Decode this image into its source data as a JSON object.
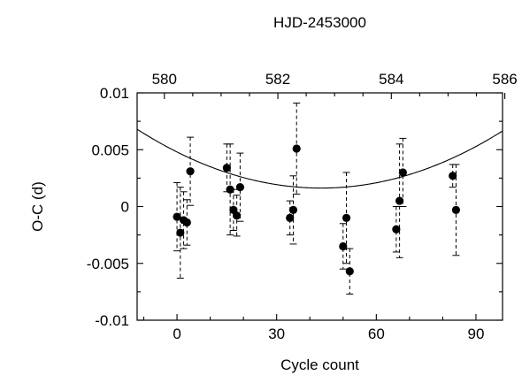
{
  "chart_data": {
    "type": "scatter",
    "title": "",
    "xlabel": "Cycle count",
    "ylabel": "O-C (d)",
    "x2label": "HJD-2453000",
    "xlim": [
      -12,
      98
    ],
    "ylim": [
      -0.01,
      0.01
    ],
    "x2lim": [
      579.52,
      585.96
    ],
    "xticks": [
      0,
      30,
      60,
      90
    ],
    "x2ticks": [
      580,
      582,
      584,
      586
    ],
    "yticks": [
      -0.01,
      -0.005,
      0,
      0.005,
      0.01
    ],
    "xtick_labels": [
      "0",
      "30",
      "60",
      "90"
    ],
    "x2tick_labels": [
      "580",
      "582",
      "584",
      "586"
    ],
    "ytick_labels": [
      "-0.01",
      "-0.005",
      "0",
      "0.005",
      "0.01"
    ],
    "grid": false,
    "legend": "none",
    "points": [
      {
        "x": 0,
        "y": -0.0009,
        "err": 0.003
      },
      {
        "x": 1,
        "y": -0.0023,
        "err": 0.004
      },
      {
        "x": 2,
        "y": -0.0012,
        "err": 0.0025
      },
      {
        "x": 3,
        "y": -0.0014,
        "err": 0.002
      },
      {
        "x": 4,
        "y": 0.0031,
        "err": 0.003
      },
      {
        "x": 15,
        "y": 0.0034,
        "err": 0.0021
      },
      {
        "x": 16,
        "y": 0.0015,
        "err": 0.004
      },
      {
        "x": 17,
        "y": -0.0003,
        "err": 0.0018
      },
      {
        "x": 18,
        "y": -0.0008,
        "err": 0.0018
      },
      {
        "x": 19,
        "y": 0.0017,
        "err": 0.003
      },
      {
        "x": 34,
        "y": -0.001,
        "err": 0.0015
      },
      {
        "x": 35,
        "y": -0.0003,
        "err": 0.003
      },
      {
        "x": 36,
        "y": 0.0051,
        "err": 0.004
      },
      {
        "x": 50,
        "y": -0.0035,
        "err": 0.002
      },
      {
        "x": 51,
        "y": -0.001,
        "err": 0.004
      },
      {
        "x": 52,
        "y": -0.0057,
        "err": 0.002
      },
      {
        "x": 66,
        "y": -0.002,
        "err": 0.002
      },
      {
        "x": 67,
        "y": 0.0005,
        "err": 0.005
      },
      {
        "x": 68,
        "y": 0.003,
        "err": 0.003
      },
      {
        "x": 83,
        "y": 0.0027,
        "err": 0.001
      },
      {
        "x": 84,
        "y": -0.0003,
        "err": 0.004
      }
    ],
    "fit": {
      "type": "quadratic",
      "a": 1.6854e-06,
      "b": -0.0001463,
      "c": 0.0048
    }
  }
}
